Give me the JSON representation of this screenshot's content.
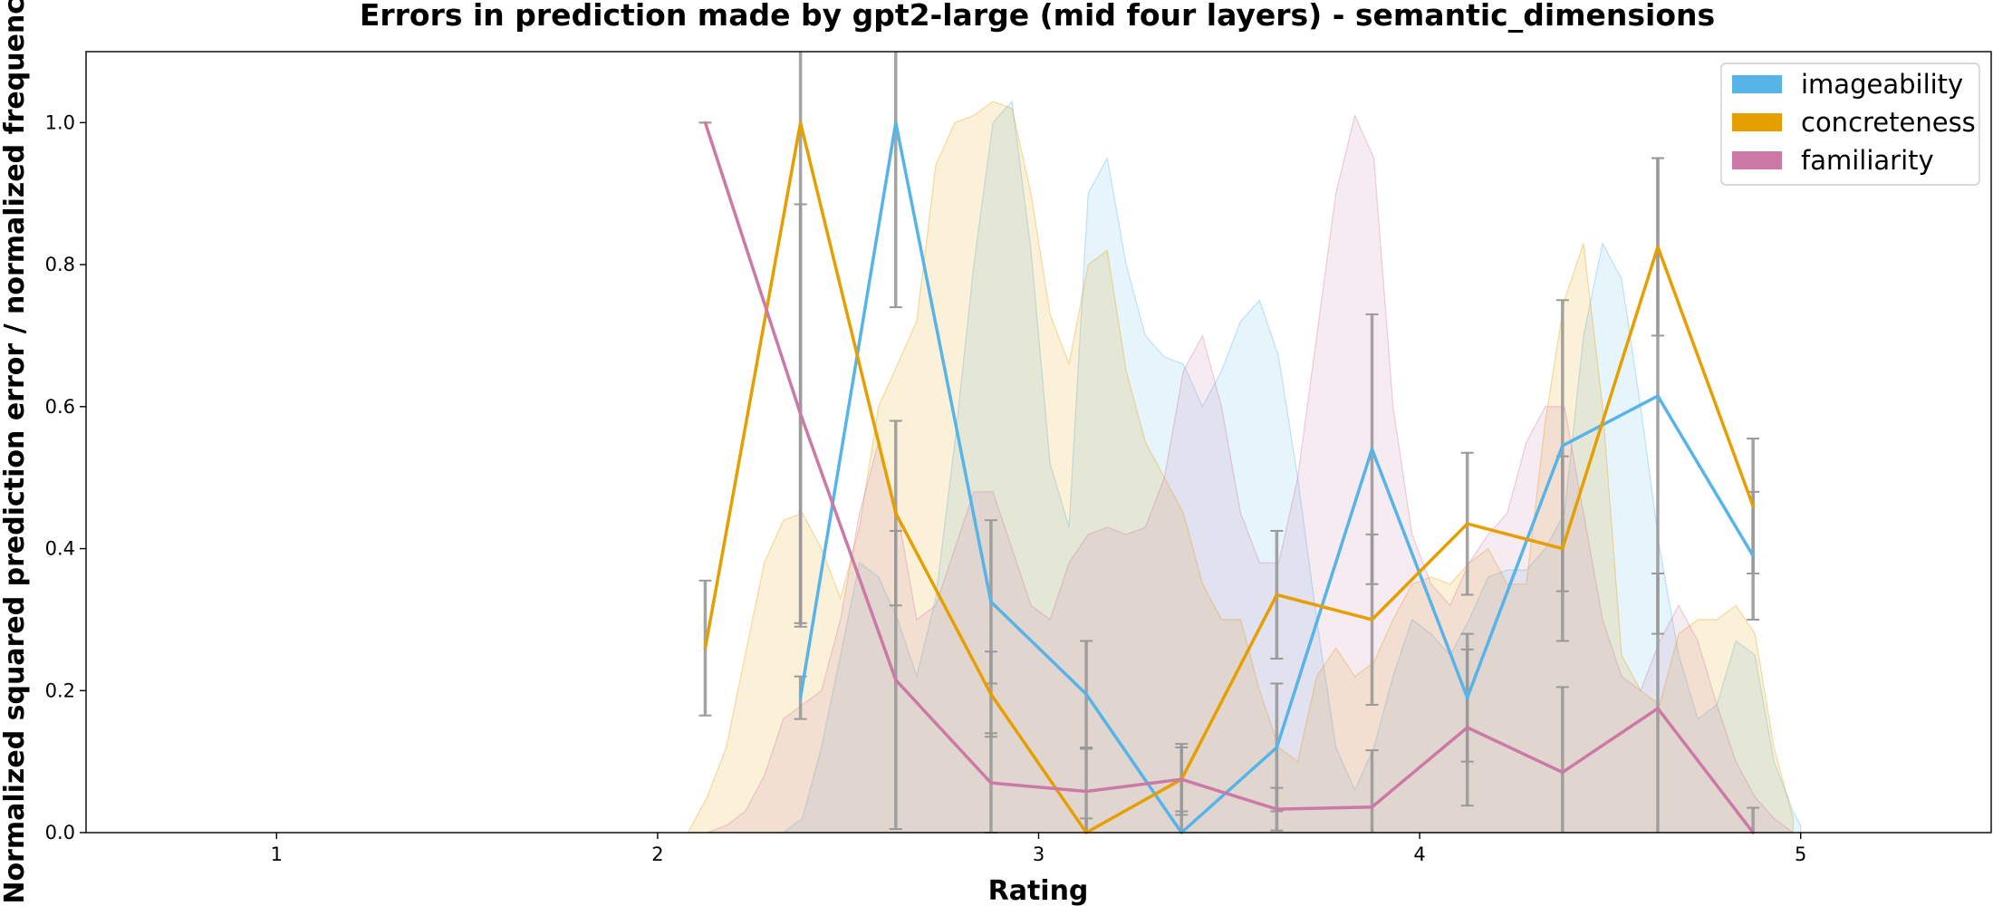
{
  "chart_data": {
    "type": "line",
    "title": "Errors in prediction made by gpt2-large (mid four layers) - semantic_dimensions",
    "xlabel": "Rating",
    "ylabel": "Normalized squared prediction error / normalized frequency",
    "xlim": [
      0.5,
      5.5
    ],
    "ylim": [
      0.0,
      1.1
    ],
    "xticks": [
      1,
      2,
      3,
      4,
      5
    ],
    "xtick_labels": [
      "1",
      "2",
      "3",
      "4",
      "5"
    ],
    "yticks": [
      0.0,
      0.2,
      0.4,
      0.6,
      0.8,
      1.0
    ],
    "ytick_labels": [
      "0.0",
      "0.2",
      "0.4",
      "0.6",
      "0.8",
      "1.0"
    ],
    "legend_position": "top-right",
    "grid": false,
    "series": [
      {
        "name": "imageability",
        "color": "#56b4e9",
        "points": [
          {
            "x": 2.375,
            "y": 0.19,
            "err": 0.03
          },
          {
            "x": 2.625,
            "y": 1.0,
            "err": 0.26
          },
          {
            "x": 2.875,
            "y": 0.325,
            "err": 0.115
          },
          {
            "x": 3.125,
            "y": 0.195,
            "err": 0.075
          },
          {
            "x": 3.375,
            "y": 0.0,
            "err": 0.03
          },
          {
            "x": 3.625,
            "y": 0.12,
            "err": 0.09
          },
          {
            "x": 3.875,
            "y": 0.54,
            "err": 0.19
          },
          {
            "x": 4.125,
            "y": 0.19,
            "err": 0.09
          },
          {
            "x": 4.375,
            "y": 0.545,
            "err": 0.205
          },
          {
            "x": 4.625,
            "y": 0.615,
            "err": 0.335
          },
          {
            "x": 4.875,
            "y": 0.39,
            "err": 0.09
          }
        ],
        "density": [
          [
            2.33,
            0.0
          ],
          [
            2.38,
            0.02
          ],
          [
            2.43,
            0.12
          ],
          [
            2.48,
            0.25
          ],
          [
            2.53,
            0.38
          ],
          [
            2.58,
            0.36
          ],
          [
            2.63,
            0.3
          ],
          [
            2.68,
            0.22
          ],
          [
            2.73,
            0.33
          ],
          [
            2.78,
            0.55
          ],
          [
            2.83,
            0.8
          ],
          [
            2.88,
            1.0
          ],
          [
            2.93,
            1.03
          ],
          [
            2.98,
            0.82
          ],
          [
            3.03,
            0.52
          ],
          [
            3.08,
            0.43
          ],
          [
            3.13,
            0.9
          ],
          [
            3.18,
            0.95
          ],
          [
            3.23,
            0.8
          ],
          [
            3.28,
            0.7
          ],
          [
            3.33,
            0.67
          ],
          [
            3.38,
            0.66
          ],
          [
            3.43,
            0.6
          ],
          [
            3.48,
            0.65
          ],
          [
            3.53,
            0.72
          ],
          [
            3.58,
            0.75
          ],
          [
            3.63,
            0.67
          ],
          [
            3.68,
            0.5
          ],
          [
            3.73,
            0.3
          ],
          [
            3.78,
            0.12
          ],
          [
            3.83,
            0.06
          ],
          [
            3.88,
            0.12
          ],
          [
            3.93,
            0.22
          ],
          [
            3.98,
            0.3
          ],
          [
            4.03,
            0.28
          ],
          [
            4.08,
            0.25
          ],
          [
            4.13,
            0.3
          ],
          [
            4.18,
            0.36
          ],
          [
            4.23,
            0.37
          ],
          [
            4.28,
            0.37
          ],
          [
            4.33,
            0.4
          ],
          [
            4.38,
            0.45
          ],
          [
            4.43,
            0.7
          ],
          [
            4.48,
            0.83
          ],
          [
            4.53,
            0.78
          ],
          [
            4.58,
            0.6
          ],
          [
            4.63,
            0.4
          ],
          [
            4.68,
            0.25
          ],
          [
            4.73,
            0.16
          ],
          [
            4.78,
            0.18
          ],
          [
            4.83,
            0.27
          ],
          [
            4.88,
            0.25
          ],
          [
            4.93,
            0.1
          ],
          [
            4.98,
            0.03
          ],
          [
            5.0,
            0.01
          ]
        ]
      },
      {
        "name": "concreteness",
        "color": "#e69f00",
        "points": [
          {
            "x": 2.125,
            "y": 0.26,
            "err": 0.095
          },
          {
            "x": 2.375,
            "y": 1.0,
            "err": 0.71
          },
          {
            "x": 2.625,
            "y": 0.45,
            "err": 0.13
          },
          {
            "x": 2.875,
            "y": 0.195,
            "err": 0.06
          },
          {
            "x": 3.125,
            "y": 0.0,
            "err": 0.02
          },
          {
            "x": 3.375,
            "y": 0.075,
            "err": 0.045
          },
          {
            "x": 3.625,
            "y": 0.335,
            "err": 0.09
          },
          {
            "x": 3.875,
            "y": 0.3,
            "err": 0.12
          },
          {
            "x": 4.125,
            "y": 0.435,
            "err": 0.1
          },
          {
            "x": 4.375,
            "y": 0.4,
            "err": 0.13
          },
          {
            "x": 4.625,
            "y": 0.825,
            "err": 0.125
          },
          {
            "x": 4.875,
            "y": 0.46,
            "err": 0.095
          }
        ],
        "density": [
          [
            2.08,
            0.0
          ],
          [
            2.13,
            0.05
          ],
          [
            2.18,
            0.12
          ],
          [
            2.23,
            0.25
          ],
          [
            2.28,
            0.38
          ],
          [
            2.33,
            0.44
          ],
          [
            2.38,
            0.45
          ],
          [
            2.43,
            0.4
          ],
          [
            2.48,
            0.33
          ],
          [
            2.53,
            0.43
          ],
          [
            2.58,
            0.6
          ],
          [
            2.63,
            0.66
          ],
          [
            2.68,
            0.72
          ],
          [
            2.73,
            0.94
          ],
          [
            2.78,
            1.0
          ],
          [
            2.83,
            1.01
          ],
          [
            2.88,
            1.03
          ],
          [
            2.93,
            1.02
          ],
          [
            2.98,
            0.9
          ],
          [
            3.03,
            0.73
          ],
          [
            3.08,
            0.66
          ],
          [
            3.13,
            0.8
          ],
          [
            3.18,
            0.82
          ],
          [
            3.23,
            0.65
          ],
          [
            3.28,
            0.55
          ],
          [
            3.33,
            0.5
          ],
          [
            3.38,
            0.45
          ],
          [
            3.43,
            0.35
          ],
          [
            3.48,
            0.3
          ],
          [
            3.53,
            0.3
          ],
          [
            3.58,
            0.2
          ],
          [
            3.63,
            0.12
          ],
          [
            3.68,
            0.1
          ],
          [
            3.73,
            0.22
          ],
          [
            3.78,
            0.26
          ],
          [
            3.83,
            0.22
          ],
          [
            3.88,
            0.24
          ],
          [
            3.93,
            0.3
          ],
          [
            3.98,
            0.35
          ],
          [
            4.03,
            0.36
          ],
          [
            4.08,
            0.35
          ],
          [
            4.13,
            0.38
          ],
          [
            4.18,
            0.4
          ],
          [
            4.23,
            0.35
          ],
          [
            4.28,
            0.35
          ],
          [
            4.33,
            0.58
          ],
          [
            4.38,
            0.75
          ],
          [
            4.43,
            0.83
          ],
          [
            4.48,
            0.6
          ],
          [
            4.53,
            0.25
          ],
          [
            4.58,
            0.2
          ],
          [
            4.63,
            0.18
          ],
          [
            4.68,
            0.28
          ],
          [
            4.73,
            0.3
          ],
          [
            4.78,
            0.3
          ],
          [
            4.83,
            0.32
          ],
          [
            4.88,
            0.28
          ],
          [
            4.93,
            0.12
          ],
          [
            4.98,
            0.02
          ]
        ]
      },
      {
        "name": "familiarity",
        "color": "#cc79a7",
        "points": [
          {
            "x": 2.125,
            "y": 1.0,
            "err": 0.0
          },
          {
            "x": 2.375,
            "y": 0.59,
            "err": 0.295
          },
          {
            "x": 2.625,
            "y": 0.215,
            "err": 0.21
          },
          {
            "x": 2.875,
            "y": 0.07,
            "err": 0.07
          },
          {
            "x": 3.125,
            "y": 0.058,
            "err": 0.06
          },
          {
            "x": 3.375,
            "y": 0.075,
            "err": 0.05
          },
          {
            "x": 3.625,
            "y": 0.033,
            "err": 0.03
          },
          {
            "x": 3.875,
            "y": 0.036,
            "err": 0.08
          },
          {
            "x": 4.125,
            "y": 0.148,
            "err": 0.11
          },
          {
            "x": 4.375,
            "y": 0.085,
            "err": 0.12
          },
          {
            "x": 4.625,
            "y": 0.175,
            "err": 0.19
          },
          {
            "x": 4.875,
            "y": 0.0,
            "err": 0.035
          }
        ],
        "density": [
          [
            2.13,
            0.0
          ],
          [
            2.18,
            0.01
          ],
          [
            2.23,
            0.03
          ],
          [
            2.28,
            0.08
          ],
          [
            2.33,
            0.16
          ],
          [
            2.38,
            0.18
          ],
          [
            2.43,
            0.2
          ],
          [
            2.48,
            0.3
          ],
          [
            2.53,
            0.45
          ],
          [
            2.58,
            0.55
          ],
          [
            2.63,
            0.45
          ],
          [
            2.68,
            0.3
          ],
          [
            2.73,
            0.32
          ],
          [
            2.78,
            0.4
          ],
          [
            2.83,
            0.48
          ],
          [
            2.88,
            0.48
          ],
          [
            2.93,
            0.4
          ],
          [
            2.98,
            0.32
          ],
          [
            3.03,
            0.3
          ],
          [
            3.08,
            0.38
          ],
          [
            3.13,
            0.42
          ],
          [
            3.18,
            0.43
          ],
          [
            3.23,
            0.42
          ],
          [
            3.28,
            0.43
          ],
          [
            3.33,
            0.5
          ],
          [
            3.38,
            0.65
          ],
          [
            3.43,
            0.7
          ],
          [
            3.48,
            0.6
          ],
          [
            3.53,
            0.45
          ],
          [
            3.58,
            0.38
          ],
          [
            3.63,
            0.38
          ],
          [
            3.68,
            0.5
          ],
          [
            3.73,
            0.7
          ],
          [
            3.78,
            0.9
          ],
          [
            3.83,
            1.01
          ],
          [
            3.88,
            0.95
          ],
          [
            3.93,
            0.6
          ],
          [
            3.98,
            0.42
          ],
          [
            4.03,
            0.35
          ],
          [
            4.08,
            0.32
          ],
          [
            4.13,
            0.38
          ],
          [
            4.18,
            0.42
          ],
          [
            4.23,
            0.45
          ],
          [
            4.28,
            0.55
          ],
          [
            4.33,
            0.6
          ],
          [
            4.38,
            0.6
          ],
          [
            4.43,
            0.45
          ],
          [
            4.48,
            0.3
          ],
          [
            4.53,
            0.22
          ],
          [
            4.58,
            0.2
          ],
          [
            4.63,
            0.27
          ],
          [
            4.68,
            0.32
          ],
          [
            4.73,
            0.27
          ],
          [
            4.78,
            0.18
          ],
          [
            4.83,
            0.1
          ],
          [
            4.88,
            0.05
          ],
          [
            4.93,
            0.02
          ],
          [
            4.98,
            0.0
          ]
        ]
      }
    ]
  }
}
